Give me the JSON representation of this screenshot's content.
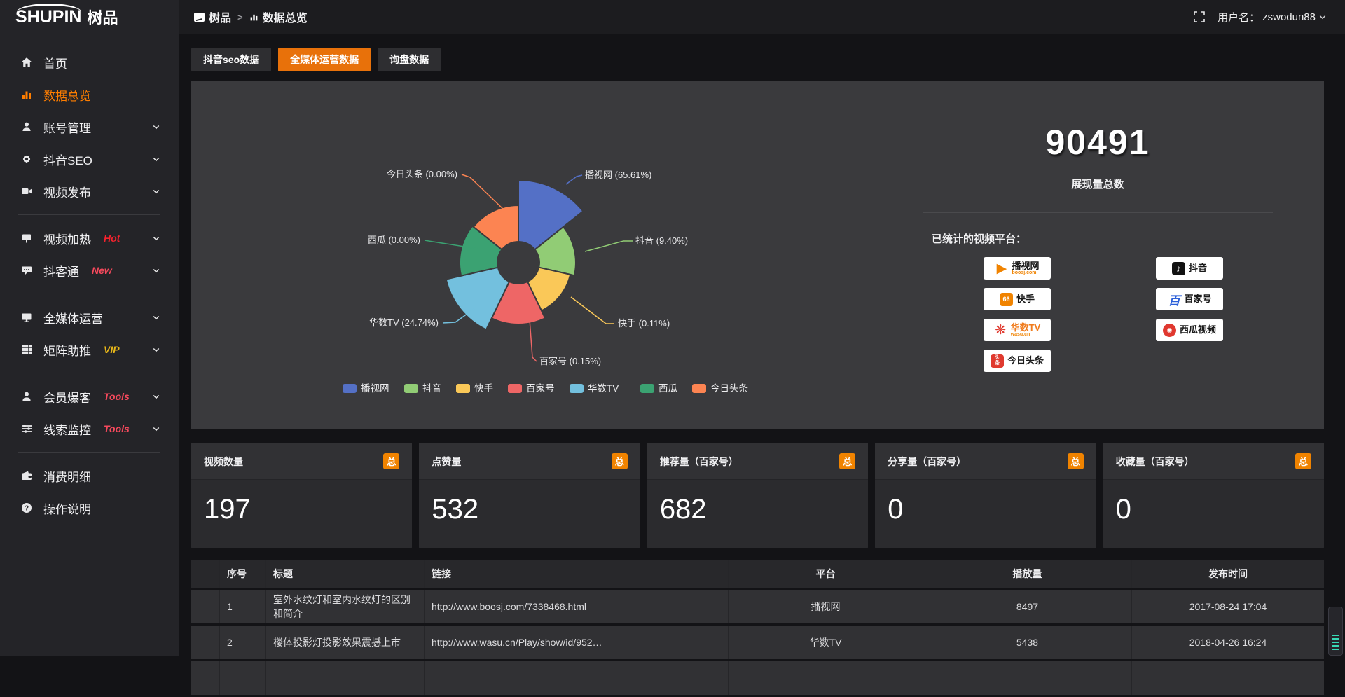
{
  "topbar": {
    "logo_en": "SHUPIN",
    "logo_cn": "树品",
    "breadcrumb": [
      {
        "label": "树品"
      },
      {
        "label": "数据总览"
      }
    ],
    "username_label": "用户名：",
    "username": "zswodun88"
  },
  "sidebar": {
    "items": [
      {
        "label": "首页",
        "icon": "home",
        "chevron": false,
        "active": false,
        "badge": "",
        "badge_color": ""
      },
      {
        "label": "数据总览",
        "icon": "chart",
        "chevron": false,
        "active": true,
        "badge": "",
        "badge_color": ""
      },
      {
        "label": "账号管理",
        "icon": "user",
        "chevron": true,
        "active": false,
        "badge": "",
        "badge_color": ""
      },
      {
        "label": "抖音SEO",
        "icon": "gear",
        "chevron": true,
        "active": false,
        "badge": "",
        "badge_color": ""
      },
      {
        "label": "视频发布",
        "icon": "video",
        "chevron": true,
        "active": false,
        "badge": "",
        "badge_color": ""
      },
      {
        "divider": true
      },
      {
        "label": "视频加热",
        "icon": "screen",
        "chevron": true,
        "active": false,
        "badge": "Hot",
        "badge_color": "#f5222d"
      },
      {
        "label": "抖客通",
        "icon": "chat",
        "chevron": true,
        "active": false,
        "badge": "New",
        "badge_color": "#f5495c"
      },
      {
        "divider": true
      },
      {
        "label": "全媒体运营",
        "icon": "monitor",
        "chevron": true,
        "active": false,
        "badge": "",
        "badge_color": ""
      },
      {
        "label": "矩阵助推",
        "icon": "grid",
        "chevron": true,
        "active": false,
        "badge": "VIP",
        "badge_color": "#e8b719"
      },
      {
        "divider": true
      },
      {
        "label": "会员爆客",
        "icon": "user",
        "chevron": true,
        "active": false,
        "badge": "Tools",
        "badge_color": "#f5495c"
      },
      {
        "label": "线索监控",
        "icon": "sliders",
        "chevron": true,
        "active": false,
        "badge": "Tools",
        "badge_color": "#f5495c"
      },
      {
        "divider": true
      },
      {
        "label": "消费明细",
        "icon": "wallet",
        "chevron": false,
        "active": false,
        "badge": "",
        "badge_color": ""
      },
      {
        "label": "操作说明",
        "icon": "question",
        "chevron": false,
        "active": false,
        "badge": "",
        "badge_color": ""
      }
    ]
  },
  "tabs": [
    {
      "label": "抖音seo数据",
      "active": false
    },
    {
      "label": "全媒体运营数据",
      "active": true
    },
    {
      "label": "询盘数据",
      "active": false
    }
  ],
  "chart_data": {
    "type": "pie",
    "subtype": "nightingale-rose",
    "legend_position": "bottom",
    "series": [
      {
        "name": "播视网",
        "value_pct": 65.61,
        "label": "播视网 (65.61%)",
        "color": "#5470c6"
      },
      {
        "name": "抖音",
        "value_pct": 9.4,
        "label": "抖音 (9.40%)",
        "color": "#91cc75"
      },
      {
        "name": "快手",
        "value_pct": 0.11,
        "label": "快手 (0.11%)",
        "color": "#fac858"
      },
      {
        "name": "百家号",
        "value_pct": 0.15,
        "label": "百家号 (0.15%)",
        "color": "#ee6666"
      },
      {
        "name": "华数TV",
        "value_pct": 24.74,
        "label": "华数TV (24.74%)",
        "color": "#73c0de"
      },
      {
        "name": "西瓜",
        "value_pct": 0.0,
        "label": "西瓜 (0.00%)",
        "color": "#3ba272"
      },
      {
        "name": "今日头条",
        "value_pct": 0.0,
        "label": "今日头条 (0.00%)",
        "color": "#fc8452"
      }
    ],
    "legend": [
      "播视网",
      "抖音",
      "快手",
      "百家号",
      "华数TV",
      "西瓜",
      "今日头条"
    ]
  },
  "summary": {
    "total_value": "90491",
    "total_label": "展现量总数",
    "platforms_title": "已统计的视频平台：",
    "platforms_left": [
      {
        "name": "播视网",
        "sub": "boosj.com",
        "logo": "boosj",
        "glyph": "▶",
        "name_color": ""
      },
      {
        "name": "快手",
        "sub": "",
        "logo": "kuaishou",
        "glyph": "66",
        "name_color": ""
      },
      {
        "name": "华数TV",
        "sub": "wasu.cn",
        "logo": "wasu",
        "glyph": "❋",
        "name_color": "orange"
      },
      {
        "name": "今日头条",
        "sub": "",
        "logo": "toutiao",
        "glyph": "头条",
        "name_color": ""
      }
    ],
    "platforms_right": [
      {
        "name": "抖音",
        "sub": "",
        "logo": "douyin",
        "glyph": "♪",
        "name_color": ""
      },
      {
        "name": "百家号",
        "sub": "",
        "logo": "baijia",
        "glyph": "百",
        "name_color": ""
      },
      {
        "name": "西瓜视频",
        "sub": "",
        "logo": "xigua",
        "glyph": "◉",
        "name_color": ""
      }
    ]
  },
  "stat_cards": [
    {
      "title": "视频数量",
      "badge": "总",
      "value": "197"
    },
    {
      "title": "点赞量",
      "badge": "总",
      "value": "532"
    },
    {
      "title": "推荐量（百家号）",
      "badge": "总",
      "value": "682"
    },
    {
      "title": "分享量（百家号）",
      "badge": "总",
      "value": "0"
    },
    {
      "title": "收藏量（百家号）",
      "badge": "总",
      "value": "0"
    }
  ],
  "table": {
    "headers": [
      "序号",
      "标题",
      "链接",
      "平台",
      "播放量",
      "发布时间"
    ],
    "rows": [
      {
        "no": "1",
        "title": "室外水纹灯和室内水纹灯的区别和简介",
        "link": "http://www.boosj.com/7338468.html",
        "platform": "播视网",
        "plays": "8497",
        "time": "2017-08-24 17:04"
      },
      {
        "no": "2",
        "title": "楼体投影灯投影效果震撼上市",
        "link": "http://www.wasu.cn/Play/show/id/952…",
        "platform": "华数TV",
        "plays": "5438",
        "time": "2018-04-26 16:24"
      },
      {
        "no": "",
        "title": "",
        "link": "",
        "platform": "",
        "plays": "",
        "time": ""
      }
    ]
  },
  "colors": {
    "accent_orange": "#e8710a",
    "badge_orange": "#f08300",
    "sidebar_active": "#ff7e00",
    "link_orange": "#e8832e",
    "panel_bg": "#3a3a3d"
  }
}
